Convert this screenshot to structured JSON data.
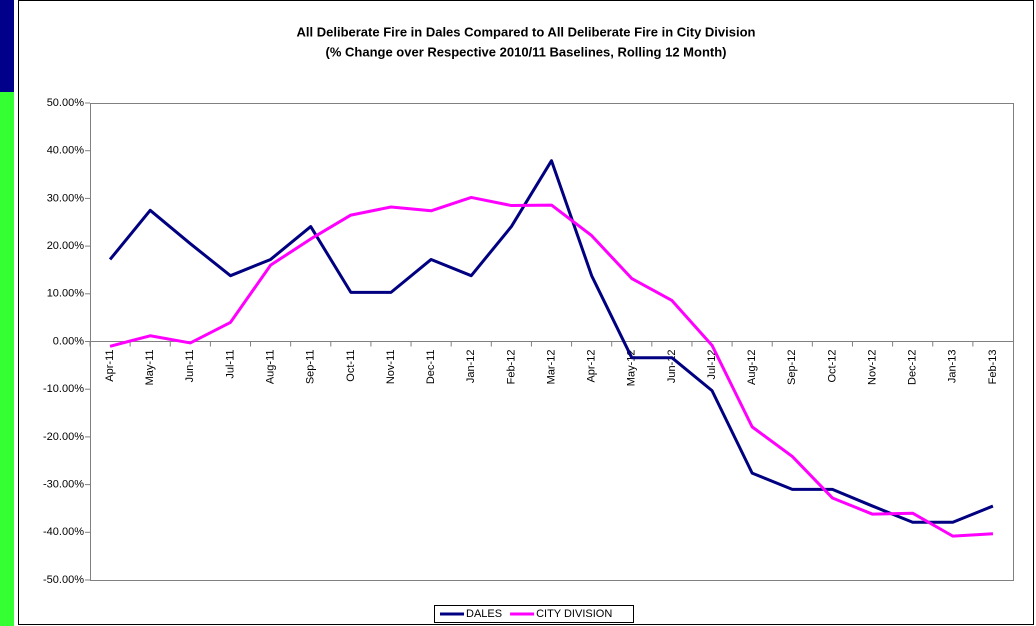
{
  "chart_data": {
    "type": "line",
    "title": "All Deliberate Fire in Dales Compared to All Deliberate Fire in City Division",
    "subtitle": "(% Change over Respective 2010/11 Baselines, Rolling 12 Month)",
    "categories": [
      "Apr-11",
      "May-11",
      "Jun-11",
      "Jul-11",
      "Aug-11",
      "Sep-11",
      "Oct-11",
      "Nov-11",
      "Dec-11",
      "Jan-12",
      "Feb-12",
      "Mar-12",
      "Apr-12",
      "May-12",
      "Jun-12",
      "Jul-12",
      "Aug-12",
      "Sep-12",
      "Oct-12",
      "Nov-12",
      "Dec-12",
      "Jan-13",
      "Feb-13"
    ],
    "series": [
      {
        "name": "DALES",
        "color": "#000080",
        "values": [
          17.2,
          27.5,
          20.5,
          13.8,
          17.2,
          24.1,
          10.3,
          10.3,
          17.2,
          13.8,
          24.1,
          37.9,
          13.8,
          -3.4,
          -3.4,
          -10.3,
          -27.6,
          -31.0,
          -31.0,
          -34.5,
          -37.9,
          -37.9,
          -34.5
        ]
      },
      {
        "name": "CITY DIVISION",
        "color": "#ff00ff",
        "values": [
          -1.0,
          1.2,
          -0.3,
          4.0,
          16.0,
          21.5,
          26.5,
          28.2,
          27.4,
          30.2,
          28.5,
          28.6,
          22.2,
          13.2,
          8.6,
          -0.8,
          -17.9,
          -24.1,
          -32.8,
          -36.2,
          -36.0,
          -40.8,
          -40.3
        ]
      }
    ],
    "ylim": [
      -50,
      50
    ],
    "yticks": [
      {
        "value": -50,
        "label": "-50.00%"
      },
      {
        "value": -40,
        "label": "-40.00%"
      },
      {
        "value": -30,
        "label": "-30.00%"
      },
      {
        "value": -20,
        "label": "-20.00%"
      },
      {
        "value": -10,
        "label": "-10.00%"
      },
      {
        "value": 0,
        "label": "0.00%"
      },
      {
        "value": 10,
        "label": "10.00%"
      },
      {
        "value": 20,
        "label": "20.00%"
      },
      {
        "value": 30,
        "label": "30.00%"
      },
      {
        "value": 40,
        "label": "40.00%"
      },
      {
        "value": 50,
        "label": "50.00%"
      }
    ],
    "grid": false,
    "legend": "bottom"
  }
}
